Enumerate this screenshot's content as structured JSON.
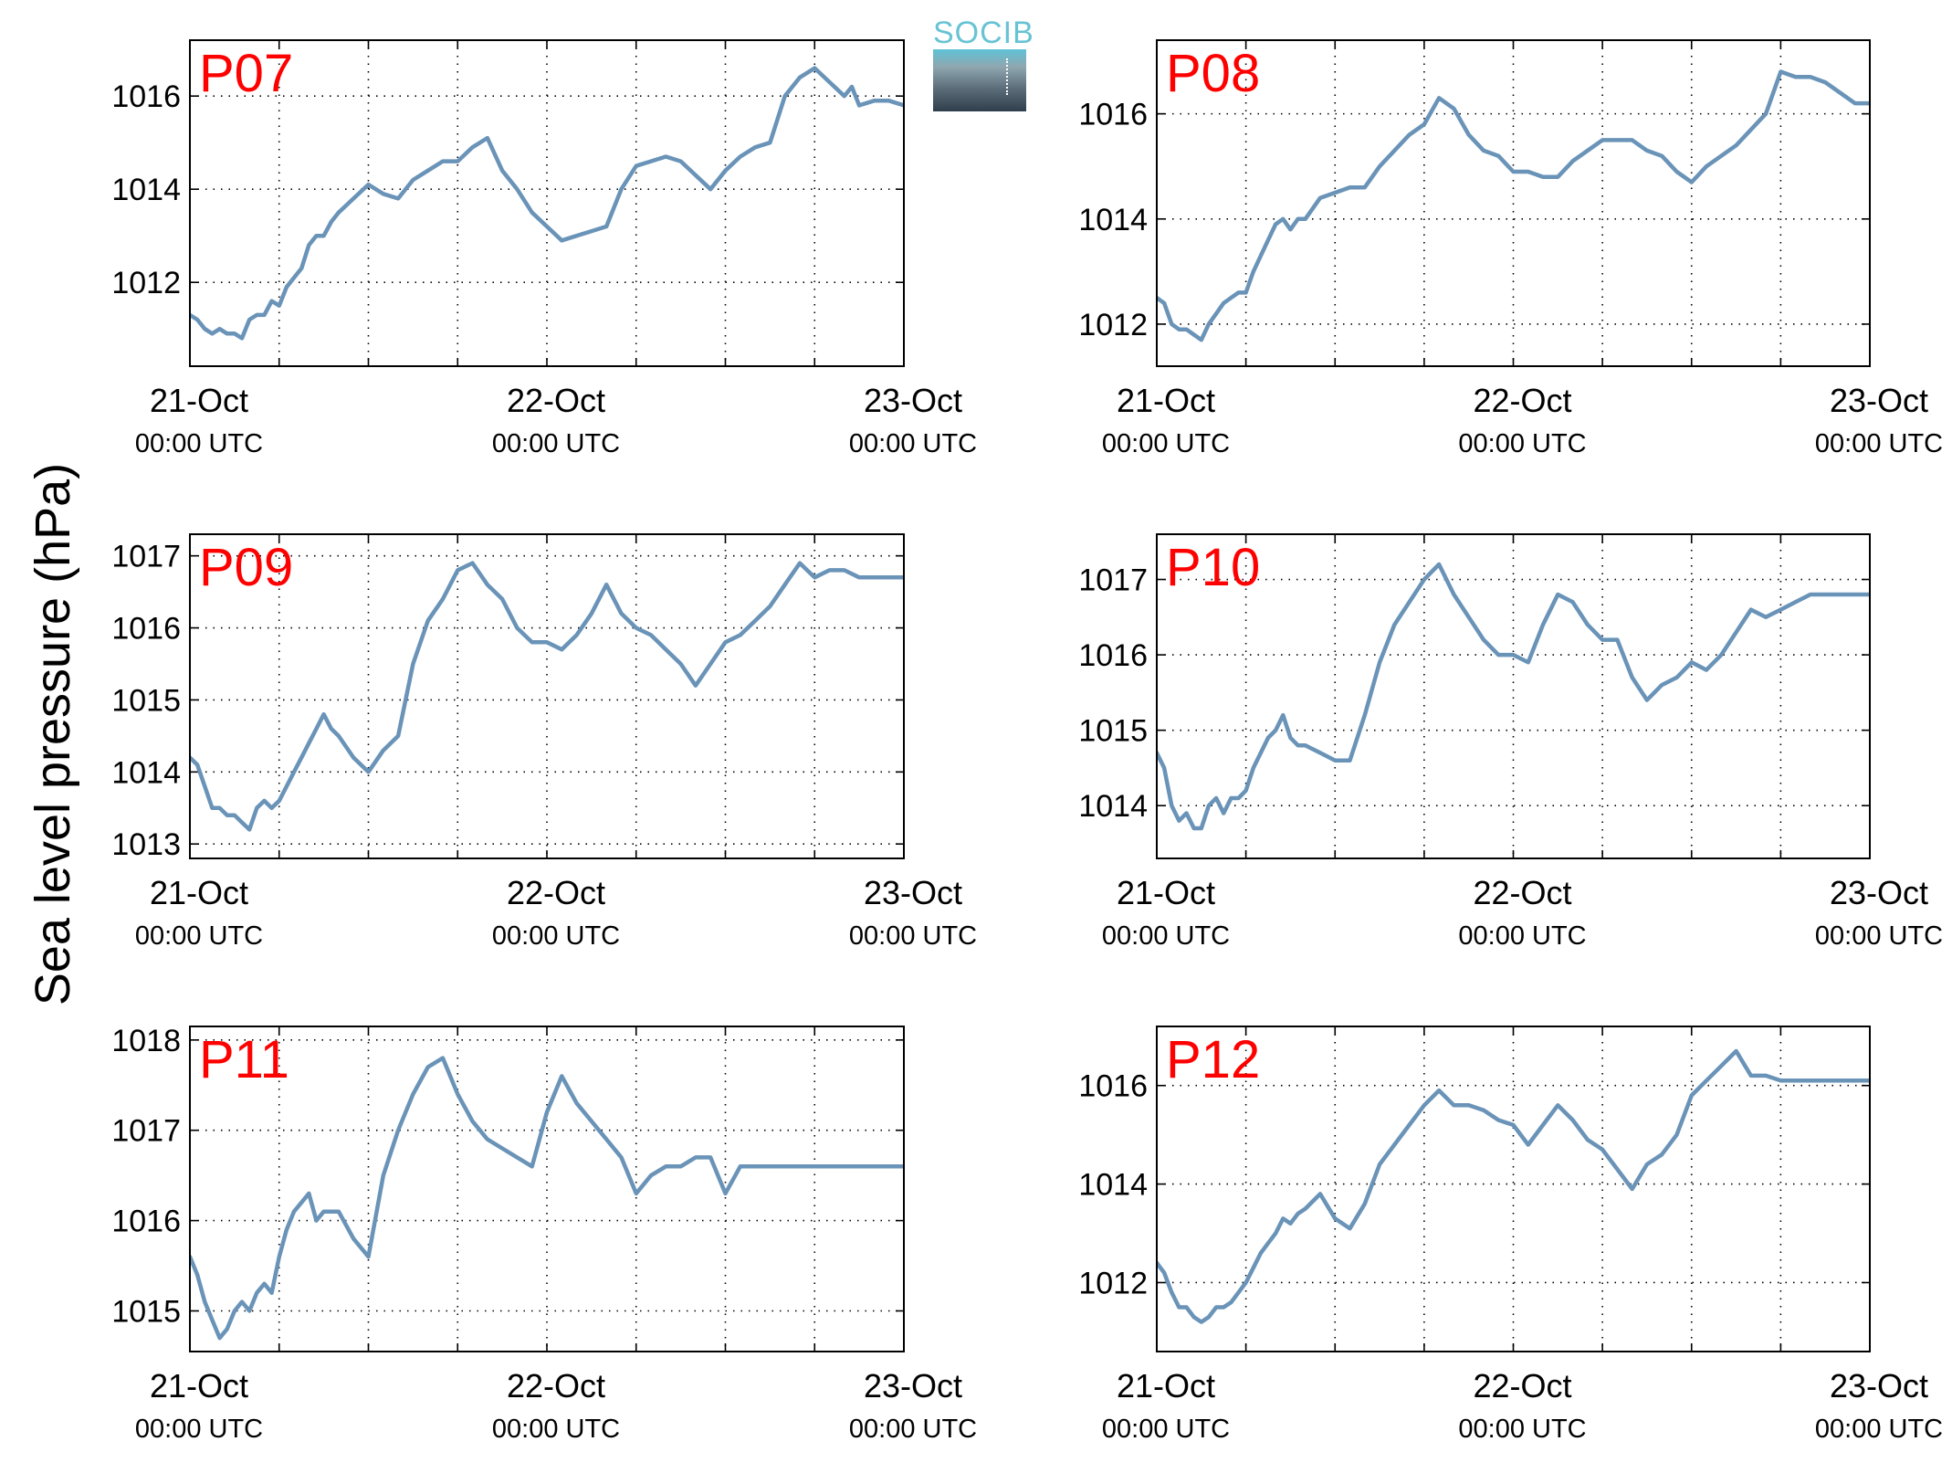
{
  "figure": {
    "ylabel": "Sea level pressure (hPa)",
    "logo_text": "SOCIB"
  },
  "colors": {
    "line": "#6a93b8",
    "title": "#ff0000",
    "grid": "#000000"
  },
  "chart_data": [
    {
      "type": "line",
      "title": "P07",
      "grid": true,
      "xticks": [
        {
          "date": "21-Oct",
          "time": "00:00 UTC"
        },
        {
          "date": "22-Oct",
          "time": "00:00 UTC"
        },
        {
          "date": "23-Oct",
          "time": "00:00 UTC"
        }
      ],
      "xlim": [
        0,
        48
      ],
      "ylim": [
        1010.2,
        1017.2
      ],
      "yticks": [
        1012,
        1014,
        1016
      ],
      "x": [
        0,
        0.5,
        1,
        1.5,
        2,
        2.5,
        3,
        3.5,
        4,
        4.5,
        5,
        5.5,
        6,
        6.5,
        7,
        7.5,
        8,
        8.5,
        9,
        9.5,
        10,
        11,
        12,
        13,
        14,
        15,
        16,
        17,
        18,
        19,
        20,
        21,
        22,
        23,
        24,
        25,
        26,
        27,
        28,
        29,
        30,
        31,
        32,
        33,
        34,
        35,
        36,
        37,
        38,
        39,
        40,
        41,
        42,
        43,
        44,
        44.5,
        45,
        46,
        47,
        48
      ],
      "y": [
        1011.3,
        1011.2,
        1011.0,
        1010.9,
        1011.0,
        1010.9,
        1010.9,
        1010.8,
        1011.2,
        1011.3,
        1011.3,
        1011.6,
        1011.5,
        1011.9,
        1012.1,
        1012.3,
        1012.8,
        1013.0,
        1013.0,
        1013.3,
        1013.5,
        1013.8,
        1014.1,
        1013.9,
        1013.8,
        1014.2,
        1014.4,
        1014.6,
        1014.6,
        1014.9,
        1015.1,
        1014.4,
        1014.0,
        1013.5,
        1013.2,
        1012.9,
        1013.0,
        1013.1,
        1013.2,
        1014.0,
        1014.5,
        1014.6,
        1014.7,
        1014.6,
        1014.3,
        1014.0,
        1014.4,
        1014.7,
        1014.9,
        1015.0,
        1016.0,
        1016.4,
        1016.6,
        1016.3,
        1016.0,
        1016.2,
        1015.8,
        1015.9,
        1015.9,
        1015.8
      ]
    },
    {
      "type": "line",
      "title": "P08",
      "grid": true,
      "xticks": [
        {
          "date": "21-Oct",
          "time": "00:00 UTC"
        },
        {
          "date": "22-Oct",
          "time": "00:00 UTC"
        },
        {
          "date": "23-Oct",
          "time": "00:00 UTC"
        }
      ],
      "xlim": [
        0,
        48
      ],
      "ylim": [
        1011.2,
        1017.4
      ],
      "yticks": [
        1012,
        1014,
        1016
      ],
      "x": [
        0,
        0.5,
        1,
        1.5,
        2,
        2.5,
        3,
        3.5,
        4,
        4.5,
        5,
        5.5,
        6,
        6.5,
        7,
        7.5,
        8,
        8.5,
        9,
        9.5,
        10,
        11,
        12,
        13,
        14,
        15,
        16,
        17,
        18,
        19,
        20,
        21,
        22,
        23,
        24,
        25,
        26,
        27,
        28,
        29,
        30,
        31,
        32,
        33,
        34,
        35,
        36,
        37,
        38,
        39,
        40,
        41,
        42,
        43,
        44,
        45,
        46,
        47,
        48
      ],
      "y": [
        1012.5,
        1012.4,
        1012.0,
        1011.9,
        1011.9,
        1011.8,
        1011.7,
        1012.0,
        1012.2,
        1012.4,
        1012.5,
        1012.6,
        1012.6,
        1013.0,
        1013.3,
        1013.6,
        1013.9,
        1014.0,
        1013.8,
        1014.0,
        1014.0,
        1014.4,
        1014.5,
        1014.6,
        1014.6,
        1015.0,
        1015.3,
        1015.6,
        1015.8,
        1016.3,
        1016.1,
        1015.6,
        1015.3,
        1015.2,
        1014.9,
        1014.9,
        1014.8,
        1014.8,
        1015.1,
        1015.3,
        1015.5,
        1015.5,
        1015.5,
        1015.3,
        1015.2,
        1014.9,
        1014.7,
        1015.0,
        1015.2,
        1015.4,
        1015.7,
        1016.0,
        1016.8,
        1016.7,
        1016.7,
        1016.6,
        1016.4,
        1016.2,
        1016.2
      ]
    },
    {
      "type": "line",
      "title": "P09",
      "grid": true,
      "xticks": [
        {
          "date": "21-Oct",
          "time": "00:00 UTC"
        },
        {
          "date": "22-Oct",
          "time": "00:00 UTC"
        },
        {
          "date": "23-Oct",
          "time": "00:00 UTC"
        }
      ],
      "xlim": [
        0,
        48
      ],
      "ylim": [
        1012.8,
        1017.3
      ],
      "yticks": [
        1013,
        1014,
        1015,
        1016,
        1017
      ],
      "x": [
        0,
        0.5,
        1,
        1.5,
        2,
        2.5,
        3,
        3.5,
        4,
        4.5,
        5,
        5.5,
        6,
        6.5,
        7,
        7.5,
        8,
        8.5,
        9,
        9.5,
        10,
        11,
        12,
        13,
        14,
        15,
        16,
        17,
        18,
        19,
        20,
        21,
        22,
        23,
        24,
        25,
        26,
        27,
        28,
        29,
        30,
        31,
        32,
        33,
        34,
        35,
        36,
        37,
        38,
        39,
        40,
        41,
        42,
        43,
        44,
        45,
        46,
        47,
        48
      ],
      "y": [
        1014.2,
        1014.1,
        1013.8,
        1013.5,
        1013.5,
        1013.4,
        1013.4,
        1013.3,
        1013.2,
        1013.5,
        1013.6,
        1013.5,
        1013.6,
        1013.8,
        1014.0,
        1014.2,
        1014.4,
        1014.6,
        1014.8,
        1014.6,
        1014.5,
        1014.2,
        1014.0,
        1014.3,
        1014.5,
        1015.5,
        1016.1,
        1016.4,
        1016.8,
        1016.9,
        1016.6,
        1016.4,
        1016.0,
        1015.8,
        1015.8,
        1015.7,
        1015.9,
        1016.2,
        1016.6,
        1016.2,
        1016.0,
        1015.9,
        1015.7,
        1015.5,
        1015.2,
        1015.5,
        1015.8,
        1015.9,
        1016.1,
        1016.3,
        1016.6,
        1016.9,
        1016.7,
        1016.8,
        1016.8,
        1016.7,
        1016.7,
        1016.7,
        1016.7
      ]
    },
    {
      "type": "line",
      "title": "P10",
      "grid": true,
      "xticks": [
        {
          "date": "21-Oct",
          "time": "00:00 UTC"
        },
        {
          "date": "22-Oct",
          "time": "00:00 UTC"
        },
        {
          "date": "23-Oct",
          "time": "00:00 UTC"
        }
      ],
      "xlim": [
        0,
        48
      ],
      "ylim": [
        1013.3,
        1017.6
      ],
      "yticks": [
        1014,
        1015,
        1016,
        1017
      ],
      "x": [
        0,
        0.5,
        1,
        1.5,
        2,
        2.5,
        3,
        3.5,
        4,
        4.5,
        5,
        5.5,
        6,
        6.5,
        7,
        7.5,
        8,
        8.5,
        9,
        9.5,
        10,
        11,
        12,
        13,
        14,
        15,
        16,
        17,
        18,
        19,
        20,
        21,
        22,
        23,
        24,
        25,
        26,
        27,
        28,
        29,
        30,
        31,
        32,
        33,
        34,
        35,
        36,
        37,
        38,
        39,
        40,
        41,
        42,
        43,
        44,
        45,
        46,
        47,
        48
      ],
      "y": [
        1014.7,
        1014.5,
        1014.0,
        1013.8,
        1013.9,
        1013.7,
        1013.7,
        1014.0,
        1014.1,
        1013.9,
        1014.1,
        1014.1,
        1014.2,
        1014.5,
        1014.7,
        1014.9,
        1015.0,
        1015.2,
        1014.9,
        1014.8,
        1014.8,
        1014.7,
        1014.6,
        1014.6,
        1015.2,
        1015.9,
        1016.4,
        1016.7,
        1017.0,
        1017.2,
        1016.8,
        1016.5,
        1016.2,
        1016.0,
        1016.0,
        1015.9,
        1016.4,
        1016.8,
        1016.7,
        1016.4,
        1016.2,
        1016.2,
        1015.7,
        1015.4,
        1015.6,
        1015.7,
        1015.9,
        1015.8,
        1016.0,
        1016.3,
        1016.6,
        1016.5,
        1016.6,
        1016.7,
        1016.8,
        1016.8,
        1016.8,
        1016.8,
        1016.8
      ]
    },
    {
      "type": "line",
      "title": "P11",
      "grid": true,
      "xticks": [
        {
          "date": "21-Oct",
          "time": "00:00 UTC"
        },
        {
          "date": "22-Oct",
          "time": "00:00 UTC"
        },
        {
          "date": "23-Oct",
          "time": "00:00 UTC"
        }
      ],
      "xlim": [
        0,
        48
      ],
      "ylim": [
        1014.55,
        1018.15
      ],
      "yticks": [
        1015,
        1016,
        1017,
        1018
      ],
      "x": [
        0,
        0.5,
        1,
        1.5,
        2,
        2.5,
        3,
        3.5,
        4,
        4.5,
        5,
        5.5,
        6,
        6.5,
        7,
        7.5,
        8,
        8.5,
        9,
        9.5,
        10,
        11,
        12,
        13,
        14,
        15,
        16,
        17,
        18,
        19,
        20,
        21,
        22,
        23,
        24,
        25,
        26,
        27,
        28,
        29,
        30,
        31,
        32,
        33,
        34,
        35,
        36,
        37,
        38,
        39,
        40,
        41,
        42,
        43,
        44,
        45,
        46,
        47,
        48
      ],
      "y": [
        1015.6,
        1015.4,
        1015.1,
        1014.9,
        1014.7,
        1014.8,
        1015.0,
        1015.1,
        1015.0,
        1015.2,
        1015.3,
        1015.2,
        1015.6,
        1015.9,
        1016.1,
        1016.2,
        1016.3,
        1016.0,
        1016.1,
        1016.1,
        1016.1,
        1015.8,
        1015.6,
        1016.5,
        1017.0,
        1017.4,
        1017.7,
        1017.8,
        1017.4,
        1017.1,
        1016.9,
        1016.8,
        1016.7,
        1016.6,
        1017.2,
        1017.6,
        1017.3,
        1017.1,
        1016.9,
        1016.7,
        1016.3,
        1016.5,
        1016.6,
        1016.6,
        1016.7,
        1016.7,
        1016.3,
        1016.6,
        1016.6,
        1016.6,
        1016.6,
        1016.6,
        1016.6,
        1016.6,
        1016.6,
        1016.6,
        1016.6,
        1016.6,
        1016.6
      ]
    },
    {
      "type": "line",
      "title": "P12",
      "grid": true,
      "xticks": [
        {
          "date": "21-Oct",
          "time": "00:00 UTC"
        },
        {
          "date": "22-Oct",
          "time": "00:00 UTC"
        },
        {
          "date": "23-Oct",
          "time": "00:00 UTC"
        }
      ],
      "xlim": [
        0,
        48
      ],
      "ylim": [
        1010.6,
        1017.2
      ],
      "yticks": [
        1012,
        1014,
        1016
      ],
      "x": [
        0,
        0.5,
        1,
        1.5,
        2,
        2.5,
        3,
        3.5,
        4,
        4.5,
        5,
        5.5,
        6,
        6.5,
        7,
        7.5,
        8,
        8.5,
        9,
        9.5,
        10,
        11,
        12,
        13,
        14,
        15,
        16,
        17,
        18,
        19,
        20,
        21,
        22,
        23,
        24,
        25,
        26,
        27,
        28,
        29,
        30,
        31,
        32,
        33,
        34,
        35,
        36,
        37,
        38,
        39,
        40,
        41,
        42,
        43,
        44,
        45,
        46,
        47,
        48
      ],
      "y": [
        1012.4,
        1012.2,
        1011.8,
        1011.5,
        1011.5,
        1011.3,
        1011.2,
        1011.3,
        1011.5,
        1011.5,
        1011.6,
        1011.8,
        1012.0,
        1012.3,
        1012.6,
        1012.8,
        1013.0,
        1013.3,
        1013.2,
        1013.4,
        1013.5,
        1013.8,
        1013.3,
        1013.1,
        1013.6,
        1014.4,
        1014.8,
        1015.2,
        1015.6,
        1015.9,
        1015.6,
        1015.6,
        1015.5,
        1015.3,
        1015.2,
        1014.8,
        1015.2,
        1015.6,
        1015.3,
        1014.9,
        1014.7,
        1014.3,
        1013.9,
        1014.4,
        1014.6,
        1015.0,
        1015.8,
        1016.1,
        1016.4,
        1016.7,
        1016.2,
        1016.2,
        1016.1,
        1016.1,
        1016.1,
        1016.1,
        1016.1,
        1016.1,
        1016.1
      ]
    }
  ]
}
